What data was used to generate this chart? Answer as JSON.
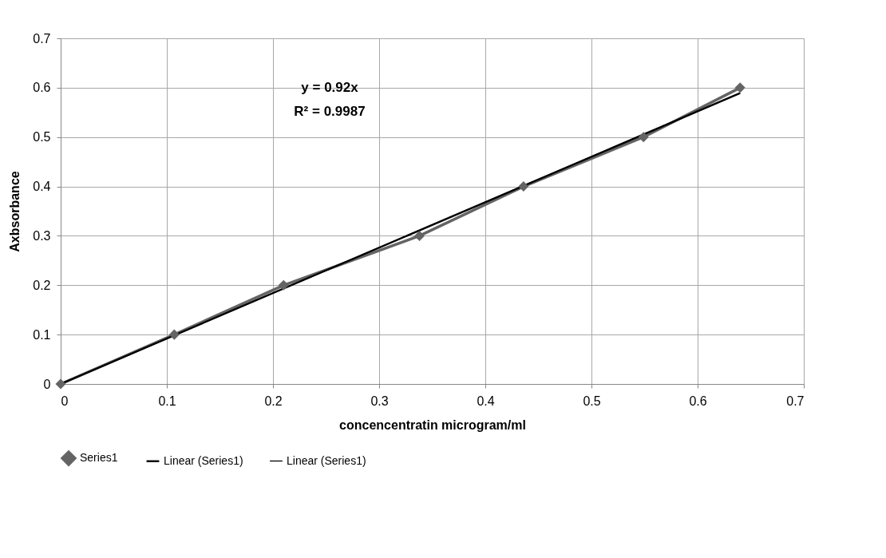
{
  "chart_data": {
    "type": "line",
    "xlabel": "concencentratin microgram/ml",
    "ylabel": "Axbsorbance",
    "annotations": [
      "y = 0.92x",
      "R² = 0.9987"
    ],
    "series": [
      {
        "name": "Series1",
        "color": "#646464",
        "marker": "diamond",
        "x": [
          0,
          0.107,
          0.21,
          0.338,
          0.436,
          0.549,
          0.64
        ],
        "values": [
          0,
          0.1,
          0.2,
          0.3,
          0.4,
          0.5,
          0.6
        ]
      },
      {
        "name": "Linear (Series1)",
        "color": "#000000",
        "marker": "none",
        "x": [
          0,
          0.64
        ],
        "values": [
          0,
          0.589
        ]
      },
      {
        "name": "Linear (Series1)",
        "color": "#000000",
        "marker": "none",
        "x": [
          0,
          0.64
        ],
        "values": [
          0,
          0.589
        ]
      }
    ],
    "xlim": [
      0,
      0.7
    ],
    "xticks": [
      0,
      0.1,
      0.2,
      0.3,
      0.4,
      0.5,
      0.6,
      0.7
    ],
    "ylim": [
      0,
      0.7
    ],
    "yticks": [
      0,
      0.1,
      0.2,
      0.3,
      0.4,
      0.5,
      0.6,
      0.7
    ],
    "grid": true,
    "legend": "bottom"
  }
}
